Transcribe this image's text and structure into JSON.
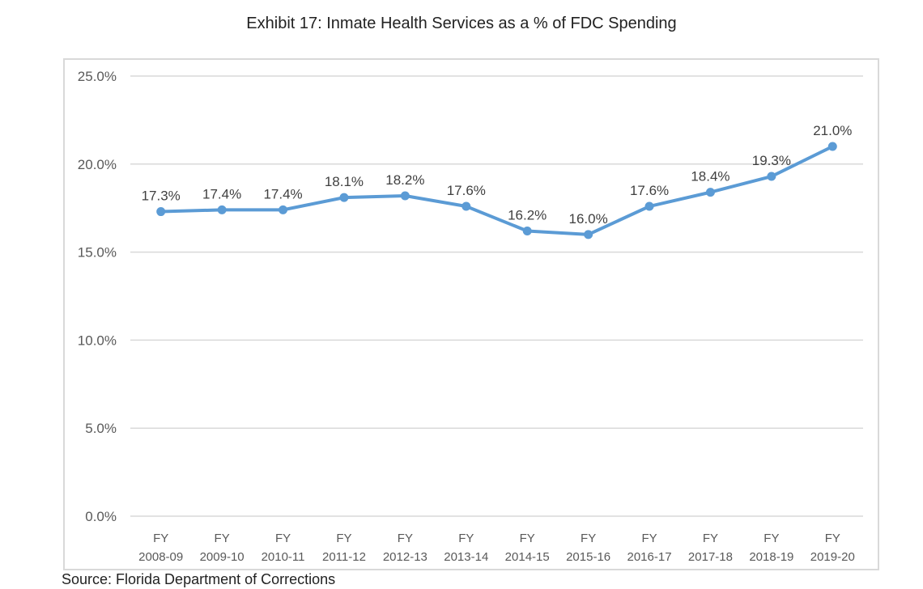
{
  "chart_data": {
    "type": "line",
    "title": "Exhibit 17: Inmate Health Services as a % of FDC Spending",
    "xlabel": "",
    "ylabel": "",
    "ylim": [
      0,
      25
    ],
    "yticks": [
      "0.0%",
      "5.0%",
      "10.0%",
      "15.0%",
      "20.0%",
      "25.0%"
    ],
    "ytick_values": [
      0,
      5,
      10,
      15,
      20,
      25
    ],
    "grid": true,
    "legend": "none",
    "categories": [
      [
        "FY",
        "2008-09"
      ],
      [
        "FY",
        "2009-10"
      ],
      [
        "FY",
        "2010-11"
      ],
      [
        "FY",
        "2011-12"
      ],
      [
        "FY",
        "2012-13"
      ],
      [
        "FY",
        "2013-14"
      ],
      [
        "FY",
        "2014-15"
      ],
      [
        "FY",
        "2015-16"
      ],
      [
        "FY",
        "2016-17"
      ],
      [
        "FY",
        "2017-18"
      ],
      [
        "FY",
        "2018-19"
      ],
      [
        "FY",
        "2019-20"
      ]
    ],
    "series": [
      {
        "name": "Inmate Health Services as a % of FDC Spending",
        "color": "#5b9bd5",
        "values": [
          17.3,
          17.4,
          17.4,
          18.1,
          18.2,
          17.6,
          16.2,
          16.0,
          17.6,
          18.4,
          19.3,
          21.0
        ],
        "labels": [
          "17.3%",
          "17.4%",
          "17.4%",
          "18.1%",
          "18.2%",
          "17.6%",
          "16.2%",
          "16.0%",
          "17.6%",
          "18.4%",
          "19.3%",
          "21.0%"
        ]
      }
    ],
    "source": "Source: Florida Department of Corrections"
  }
}
